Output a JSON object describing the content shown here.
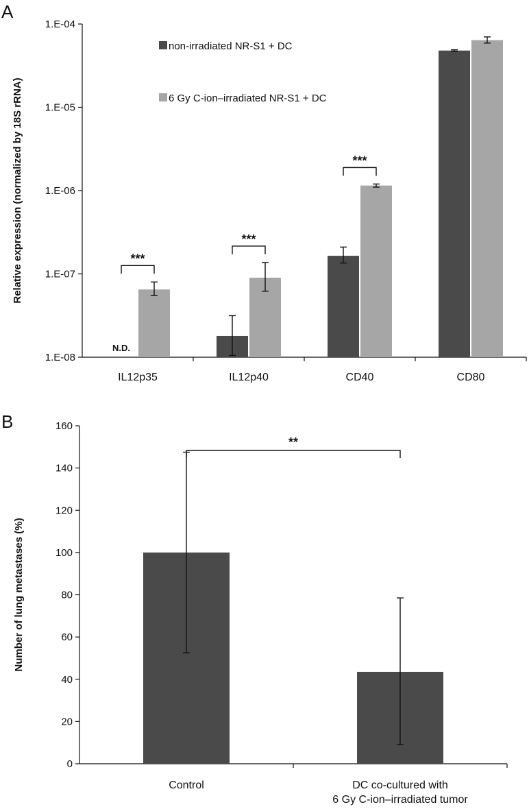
{
  "chart_data": [
    {
      "panel": "A",
      "type": "bar",
      "yscale": "log",
      "ylabel": "Relative expression  (normalized by 18S rRNA)",
      "ylim": [
        1e-08,
        0.0001
      ],
      "yticks": [
        "1.E-08",
        "1.E-07",
        "1.E-06",
        "1.E-05",
        "1.E-04"
      ],
      "categories": [
        "IL12p35",
        "IL12p40",
        "CD40",
        "CD80"
      ],
      "series": [
        {
          "name": "non-irradiated NR-S1 + DC",
          "color": "#4a4a4a",
          "values": [
            null,
            1.8e-08,
            1.65e-07,
            4.8e-05
          ],
          "err_low": [
            null,
            1.05e-08,
            1.35e-07,
            4.7e-05
          ],
          "err_high": [
            null,
            3.15e-08,
            2.1e-07,
            4.9e-05
          ]
        },
        {
          "name": "6 Gy C-ion–irradiated NR-S1 + DC",
          "color": "#a6a6a6",
          "values": [
            6.5e-08,
            9e-08,
            1.15e-06,
            6.4e-05
          ],
          "err_low": [
            5.5e-08,
            6.2e-08,
            1.1e-06,
            5.9e-05
          ],
          "err_high": [
            8e-08,
            1.37e-07,
            1.2e-06,
            7e-05
          ]
        }
      ],
      "annotations": {
        "not_detected": "N.D.",
        "significance": [
          {
            "category": "IL12p35",
            "label": "***"
          },
          {
            "category": "IL12p40",
            "label": "***"
          },
          {
            "category": "CD40",
            "label": "***"
          }
        ]
      }
    },
    {
      "panel": "B",
      "type": "bar",
      "ylabel": "Number of lung metastases (%)",
      "ylim": [
        0,
        160
      ],
      "yticks": [
        "0",
        "20",
        "40",
        "60",
        "80",
        "100",
        "120",
        "140",
        "160"
      ],
      "categories": [
        [
          "Control"
        ],
        [
          "DC co-cultured with",
          "6 Gy C-ion–irradiated tumor"
        ]
      ],
      "color": "#4a4a4a",
      "values": [
        100,
        43.5
      ],
      "err_low": [
        52.5,
        9
      ],
      "err_high": [
        147.5,
        78.5
      ],
      "significance": {
        "label": "**",
        "between": [
          0,
          1
        ]
      }
    }
  ]
}
